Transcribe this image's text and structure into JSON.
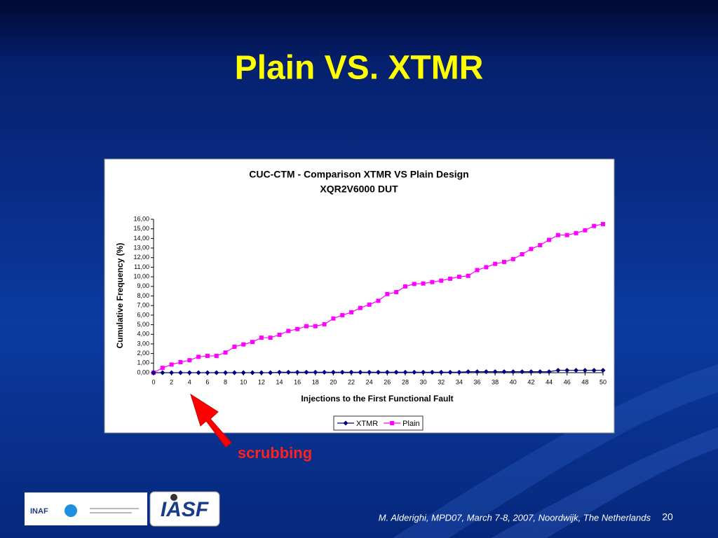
{
  "slide": {
    "title": "Plain VS. XTMR",
    "annotation": "scrubbing",
    "footer": "M. Alderighi, MPD07, March 7-8, 2007, Noordwijk, The Netherlands",
    "page_number": "20",
    "logos": [
      "INAF",
      "IASF"
    ]
  },
  "chart_data": {
    "type": "line",
    "title": "CUC-CTM - Comparison XTMR VS Plain Design",
    "subtitle": "XQR2V6000 DUT",
    "x_label": "Injections to the First Functional Fault",
    "y_label": "Cumulative Frequency (%)",
    "x": [
      0,
      1,
      2,
      3,
      4,
      5,
      6,
      7,
      8,
      9,
      10,
      11,
      12,
      13,
      14,
      15,
      16,
      17,
      18,
      19,
      20,
      21,
      22,
      23,
      24,
      25,
      26,
      27,
      28,
      29,
      30,
      31,
      32,
      33,
      34,
      35,
      36,
      37,
      38,
      39,
      40,
      41,
      42,
      43,
      44,
      45,
      46,
      47,
      48,
      49,
      50
    ],
    "series": [
      {
        "name": "XTMR",
        "color": "#000080",
        "marker": "diamond",
        "values": [
          0,
          0,
          0,
          0,
          0,
          0,
          0,
          0,
          0,
          0,
          0,
          0,
          0,
          0,
          0.05,
          0.05,
          0.05,
          0.05,
          0.05,
          0.05,
          0.05,
          0.05,
          0.05,
          0.05,
          0.05,
          0.05,
          0.05,
          0.05,
          0.05,
          0.05,
          0.05,
          0.05,
          0.05,
          0.05,
          0.05,
          0.1,
          0.1,
          0.1,
          0.1,
          0.1,
          0.1,
          0.1,
          0.1,
          0.1,
          0.1,
          0.25,
          0.25,
          0.25,
          0.25,
          0.25,
          0.25
        ]
      },
      {
        "name": "Plain",
        "color": "#ff00ff",
        "marker": "square",
        "values": [
          0,
          0.5,
          0.85,
          1.1,
          1.3,
          1.65,
          1.75,
          1.75,
          2.1,
          2.7,
          2.95,
          3.2,
          3.65,
          3.65,
          3.95,
          4.35,
          4.55,
          4.85,
          4.85,
          5.05,
          5.65,
          6.0,
          6.3,
          6.75,
          7.1,
          7.5,
          8.2,
          8.4,
          9.0,
          9.25,
          9.3,
          9.45,
          9.6,
          9.8,
          10.0,
          10.1,
          10.7,
          11.0,
          11.35,
          11.55,
          11.85,
          12.35,
          12.9,
          13.3,
          13.85,
          14.35,
          14.35,
          14.55,
          14.85,
          15.3,
          15.5
        ]
      }
    ],
    "xlim": [
      0,
      50
    ],
    "xticks": [
      0,
      2,
      4,
      6,
      8,
      10,
      12,
      14,
      16,
      18,
      20,
      22,
      24,
      26,
      28,
      30,
      32,
      34,
      36,
      38,
      40,
      42,
      44,
      46,
      48,
      50
    ],
    "ylim": [
      0,
      16
    ],
    "yticks": [
      {
        "value": 0,
        "label": "0,00"
      },
      {
        "value": 1,
        "label": "1,00"
      },
      {
        "value": 2,
        "label": "2,00"
      },
      {
        "value": 3,
        "label": "3,00"
      },
      {
        "value": 4,
        "label": "4,00"
      },
      {
        "value": 5,
        "label": "5,00"
      },
      {
        "value": 6,
        "label": "6,00"
      },
      {
        "value": 7,
        "label": "7,00"
      },
      {
        "value": 8,
        "label": "8,00"
      },
      {
        "value": 9,
        "label": "9,00"
      },
      {
        "value": 10,
        "label": "10,00"
      },
      {
        "value": 11,
        "label": "11,00"
      },
      {
        "value": 12,
        "label": "12,00"
      },
      {
        "value": 13,
        "label": "13,00"
      },
      {
        "value": 14,
        "label": "14,00"
      },
      {
        "value": 15,
        "label": "15,00"
      },
      {
        "value": 16,
        "label": "16,00"
      }
    ],
    "grid": false,
    "legend": "bottom"
  }
}
